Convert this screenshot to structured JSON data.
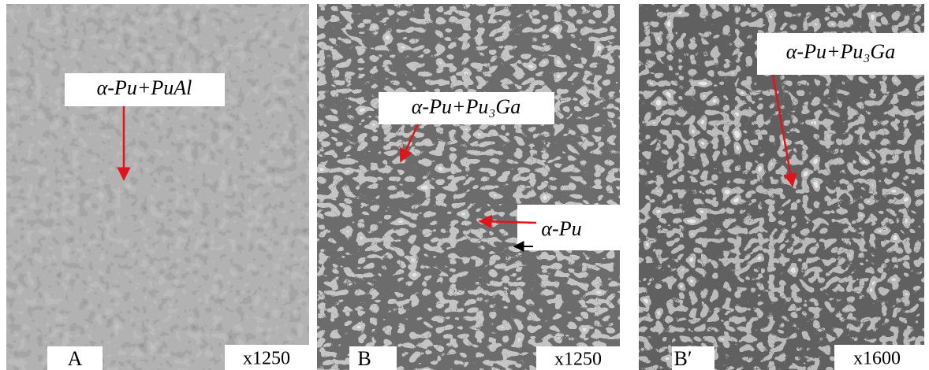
{
  "panels": [
    {
      "label": "A",
      "magnification": "x1250",
      "annotations": [
        "α-Pu+PuAl"
      ]
    },
    {
      "label": "B",
      "magnification": "x1250",
      "annotations": [
        "α-Pu+Pu₃Ga",
        "α-Pu"
      ]
    },
    {
      "label": "B′",
      "magnification": "x1600",
      "annotations": [
        "α-Pu+Pu₃Ga"
      ]
    }
  ]
}
